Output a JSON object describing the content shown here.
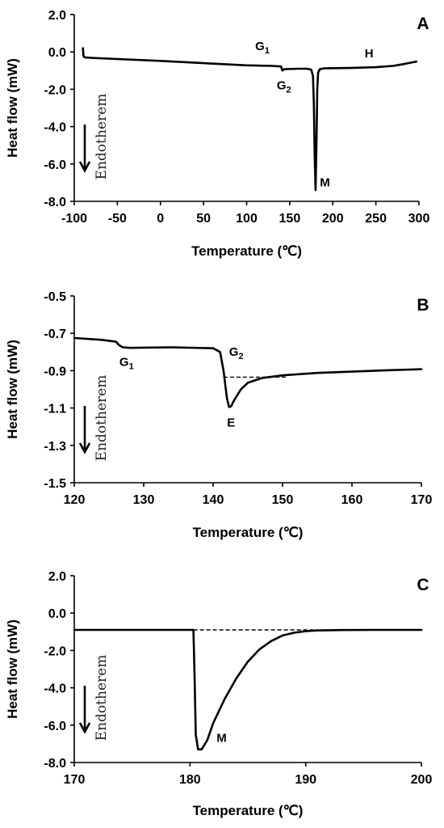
{
  "chart_data": [
    {
      "type": "line",
      "panel_label": "A",
      "xlabel": "Temperature (℃)",
      "ylabel": "Heat flow (mW)",
      "xlim": [
        -100,
        300
      ],
      "ylim": [
        -8,
        2
      ],
      "x_ticks": [
        "-100",
        "-50",
        "0",
        "50",
        "100",
        "150",
        "200",
        "250",
        "300"
      ],
      "y_ticks": [
        "2.0",
        "0.0",
        "-2.0",
        "-4.0",
        "-6.0",
        "-8.0"
      ],
      "grid": false,
      "endo_label": "Endotherem",
      "series": [
        {
          "x": [
            -90,
            -89.5,
            -89,
            -87,
            -80,
            -50,
            0,
            50,
            100,
            130,
            140,
            141,
            142,
            143,
            145,
            160,
            170,
            175,
            177,
            178,
            179,
            180,
            181,
            182,
            183,
            185,
            190,
            200,
            220,
            250,
            270,
            280,
            290,
            297
          ],
          "y": [
            0.2,
            -0.1,
            -0.25,
            -0.3,
            -0.32,
            -0.38,
            -0.48,
            -0.6,
            -0.72,
            -0.75,
            -0.78,
            -0.95,
            -1.0,
            -0.93,
            -0.92,
            -0.9,
            -0.9,
            -0.95,
            -1.3,
            -2.8,
            -5.5,
            -7.4,
            -5.0,
            -2.0,
            -1.1,
            -0.92,
            -0.88,
            -0.87,
            -0.86,
            -0.82,
            -0.75,
            -0.67,
            -0.58,
            -0.52
          ]
        }
      ],
      "annotations": [
        {
          "text": "G",
          "sub": "1",
          "x": 110,
          "y": 0.1
        },
        {
          "text": "G",
          "sub": "2",
          "x": 135,
          "y": -2.0
        },
        {
          "text": "H",
          "x": 237,
          "y": -0.3
        },
        {
          "text": "M",
          "x": 185,
          "y": -7.2
        }
      ]
    },
    {
      "type": "line",
      "panel_label": "B",
      "xlabel": "Temperature (℃)",
      "ylabel": "Heat flow (mW)",
      "xlim": [
        120,
        170
      ],
      "ylim": [
        -1.5,
        -0.5
      ],
      "x_ticks": [
        "120",
        "130",
        "140",
        "150",
        "160",
        "170"
      ],
      "y_ticks": [
        "-0.5",
        "-0.7",
        "-0.9",
        "-1.1",
        "-1.3",
        "-1.5"
      ],
      "grid": false,
      "endo_label": "Endotherem",
      "series": [
        {
          "x": [
            120,
            124,
            126,
            126.5,
            127,
            128,
            134,
            140,
            141,
            141.5,
            142,
            142.3,
            142.6,
            143,
            144,
            145,
            147,
            150,
            155,
            160,
            165,
            170
          ],
          "y": [
            -0.725,
            -0.735,
            -0.745,
            -0.765,
            -0.775,
            -0.778,
            -0.775,
            -0.78,
            -0.8,
            -0.9,
            -1.05,
            -1.095,
            -1.09,
            -1.06,
            -1.0,
            -0.965,
            -0.94,
            -0.925,
            -0.912,
            -0.905,
            -0.898,
            -0.892
          ]
        }
      ],
      "baseline": {
        "x": [
          141.5,
          150.5
        ],
        "y": [
          -0.935,
          -0.935
        ]
      },
      "annotations": [
        {
          "text": "G",
          "sub": "1",
          "x": 126.5,
          "y": -0.875
        },
        {
          "text": "G",
          "sub": "2",
          "x": 142.3,
          "y": -0.82
        },
        {
          "text": "E",
          "x": 142,
          "y": -1.2
        }
      ]
    },
    {
      "type": "line",
      "panel_label": "C",
      "xlabel": "Temperature (℃)",
      "ylabel": "Heat flow (mW)",
      "xlim": [
        170,
        200
      ],
      "ylim": [
        -8,
        2
      ],
      "x_ticks": [
        "170",
        "180",
        "190",
        "200"
      ],
      "y_ticks": [
        "2.0",
        "0.0",
        "-2.0",
        "-4.0",
        "-6.0",
        "-8.0"
      ],
      "grid": false,
      "endo_label": "Endotherem",
      "series": [
        {
          "x": [
            170,
            175,
            180.3,
            180.4,
            180.5,
            180.7,
            181,
            181.5,
            182,
            183,
            184,
            185,
            186,
            187,
            188,
            189,
            190,
            191,
            193,
            196,
            200
          ],
          "y": [
            -0.9,
            -0.9,
            -0.9,
            -3.5,
            -6.5,
            -7.3,
            -7.3,
            -6.8,
            -5.9,
            -4.6,
            -3.5,
            -2.6,
            -1.95,
            -1.5,
            -1.2,
            -1.05,
            -0.97,
            -0.93,
            -0.91,
            -0.9,
            -0.9
          ]
        }
      ],
      "baseline": {
        "x": [
          180.3,
          191
        ],
        "y": [
          -0.9,
          -0.9
        ]
      },
      "annotations": [
        {
          "text": "M",
          "x": 182.3,
          "y": -6.9
        }
      ]
    }
  ]
}
